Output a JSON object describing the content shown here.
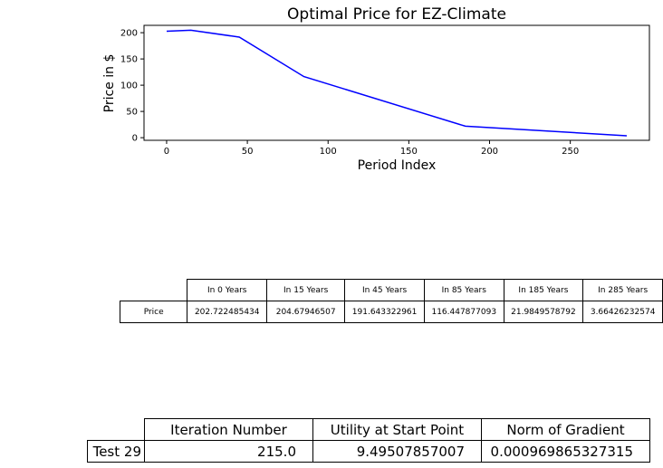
{
  "chart_data": {
    "type": "line",
    "title": "Optimal Price for EZ-Climate",
    "xlabel": "Period Index",
    "ylabel": "Price in $",
    "xlim": [
      -14,
      299
    ],
    "ylim": [
      -5,
      214
    ],
    "xticks": [
      0,
      50,
      100,
      150,
      200,
      250
    ],
    "yticks": [
      0,
      50,
      100,
      150,
      200
    ],
    "series": [
      {
        "color": "#0000ff",
        "x": [
          0,
          15,
          45,
          85,
          185,
          285
        ],
        "y": [
          202.722485434,
          204.67946507,
          191.643322961,
          116.447877093,
          21.9849578792,
          3.66426232574
        ]
      }
    ],
    "grid": false
  },
  "price_table": {
    "headers": [
      "In 0 Years",
      "In 15 Years",
      "In 45 Years",
      "In 85 Years",
      "In 185 Years",
      "In 285 Years"
    ],
    "row_label": "Price",
    "values": [
      "202.722485434",
      "204.67946507",
      "191.643322961",
      "116.447877093",
      "21.9849578792",
      "3.66426232574"
    ]
  },
  "stats_table": {
    "headers": [
      "Iteration Number",
      "Utility at Start Point",
      "Norm of Gradient"
    ],
    "row_label": "Test 29",
    "values": [
      "215.0",
      "9.49507857007",
      "0.000969865327315"
    ]
  }
}
